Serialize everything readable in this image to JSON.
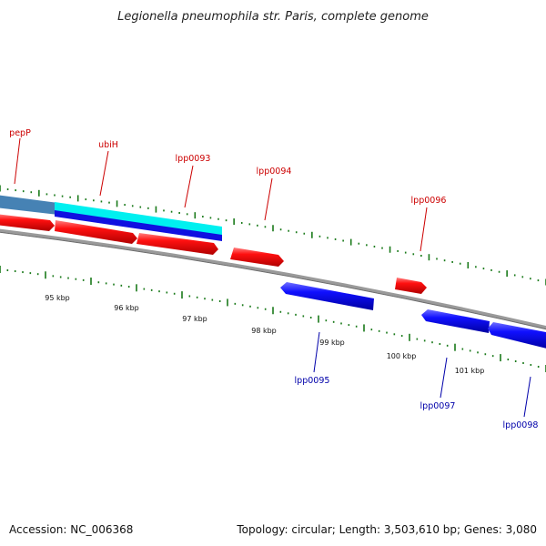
{
  "title": "Legionella pneumophila str. Paris, complete genome",
  "footer": {
    "accession": "Accession: NC_006368",
    "summary": "Topology: circular; Length: 3,503,610 bp; Genes: 3,080"
  },
  "colors": {
    "forward_gene": "#ff0000",
    "reverse_gene": "#0000ff",
    "forward_label": "#cc0000",
    "reverse_label": "#0000aa",
    "backbone": "#808080",
    "tick": "#1a7a1a",
    "highlight_cyan": "#00ffff",
    "highlight_steel": "#4682b4"
  },
  "scale_labels": [
    "95 kbp",
    "96 kbp",
    "97 kbp",
    "98 kbp",
    "99 kbp",
    "100 kbp",
    "101 kbp"
  ],
  "forward_genes": [
    {
      "label": "pepP",
      "has_label": true
    },
    {
      "label": "ubiH",
      "has_label": true
    },
    {
      "label": "lpp0093",
      "has_label": true
    },
    {
      "label": "lpp0094",
      "has_label": true
    },
    {
      "label": "lpp0096",
      "has_label": true
    }
  ],
  "reverse_genes": [
    {
      "label": "lpp0095"
    },
    {
      "label": "lpp0097"
    },
    {
      "label": "lpp0098"
    }
  ]
}
